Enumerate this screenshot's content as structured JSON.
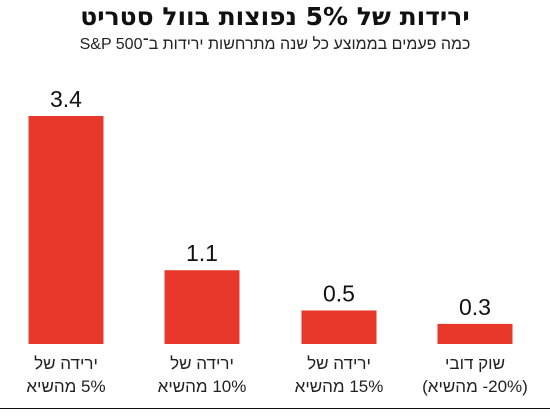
{
  "title": "ירידות של 5% נפוצות בוול סטריט",
  "subtitle": "כמה פעמים בממוצע כל שנה מתרחשות ירידות ב־S&P 500",
  "colors": {
    "bar": "#e8372b",
    "baseline": "#111111"
  },
  "chart_data": {
    "type": "bar",
    "categories": [
      [
        "ירידה של",
        "5% מהשיא"
      ],
      [
        "ירידה של",
        "10% מהשיא"
      ],
      [
        "ירידה של",
        "15% מהשיא"
      ],
      [
        "שוק דובי",
        "(20%- מהשיא)"
      ]
    ],
    "values": [
      3.4,
      1.1,
      0.5,
      0.3
    ],
    "value_labels": [
      "3.4",
      "1.1",
      "0.5",
      "0.3"
    ],
    "ylim": [
      0,
      3.4
    ],
    "grid": false,
    "legend": "none"
  }
}
